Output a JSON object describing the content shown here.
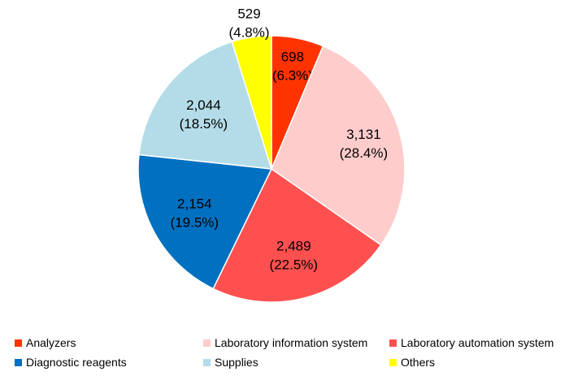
{
  "chart_data": {
    "type": "pie",
    "title": "",
    "legend_position": "bottom",
    "slices": [
      {
        "name": "Analyzers",
        "value": 698,
        "value_label": "698",
        "percent_label": "(6.3%)",
        "color": "#FF3300"
      },
      {
        "name": "Laboratory information system",
        "value": 3131,
        "value_label": "3,131",
        "percent_label": "(28.4%)",
        "color": "#FFCCCC"
      },
      {
        "name": "Laboratory automation system",
        "value": 2489,
        "value_label": "2,489",
        "percent_label": "(22.5%)",
        "color": "#FF5050"
      },
      {
        "name": "Diagnostic reagents",
        "value": 2154,
        "value_label": "2,154",
        "percent_label": "(19.5%)",
        "color": "#0070C0"
      },
      {
        "name": "Supplies",
        "value": 2044,
        "value_label": "2,044",
        "percent_label": "(18.5%)",
        "color": "#B4DCE8"
      },
      {
        "name": "Others",
        "value": 529,
        "value_label": "529",
        "percent_label": "(4.8%)",
        "color": "#FFFF00"
      }
    ]
  }
}
